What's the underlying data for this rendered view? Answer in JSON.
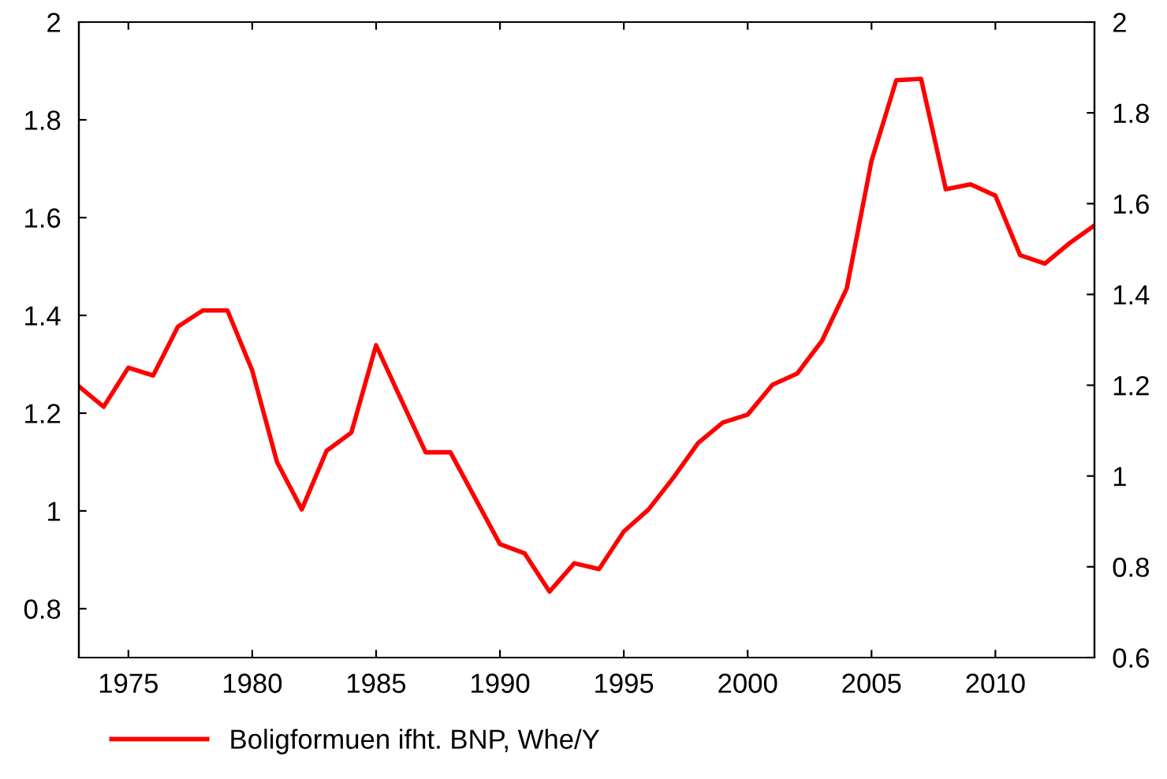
{
  "chart_data": {
    "type": "line",
    "x": [
      1973,
      1974,
      1975,
      1976,
      1977,
      1978,
      1979,
      1980,
      1981,
      1982,
      1983,
      1984,
      1985,
      1986,
      1987,
      1988,
      1989,
      1990,
      1991,
      1992,
      1993,
      1994,
      1995,
      1996,
      1997,
      1998,
      1999,
      2000,
      2001,
      2002,
      2003,
      2004,
      2005,
      2006,
      2007,
      2008,
      2009,
      2010,
      2011,
      2012,
      2013,
      2014
    ],
    "series": [
      {
        "name": "Boligformuen ifht. BNP, Whe/Y",
        "color": "#ff0000",
        "values": [
          1.255,
          1.213,
          1.293,
          1.277,
          1.377,
          1.41,
          1.41,
          1.287,
          1.1,
          1.003,
          1.123,
          1.16,
          1.339,
          1.229,
          1.12,
          1.12,
          1.026,
          0.932,
          0.913,
          0.835,
          0.893,
          0.881,
          0.958,
          1.003,
          1.068,
          1.139,
          1.181,
          1.197,
          1.258,
          1.281,
          1.348,
          1.455,
          1.716,
          1.881,
          1.884,
          1.658,
          1.668,
          1.645,
          1.523,
          1.506,
          1.548,
          1.584
        ]
      }
    ],
    "xlim": [
      1973,
      2014
    ],
    "xticks": [
      1975,
      1980,
      1985,
      1990,
      1995,
      2000,
      2005,
      2010
    ],
    "ylim": [
      0.7,
      2.0
    ],
    "yticks": [
      0.8,
      1.0,
      1.2,
      1.4,
      1.6,
      1.8,
      2.0
    ],
    "y2lim": [
      0.6,
      2.0
    ],
    "y2ticks": [
      0.6,
      0.8,
      1.0,
      1.2,
      1.4,
      1.6,
      1.8,
      2.0
    ],
    "grid": false,
    "legend": "bottom",
    "marker": "none",
    "line_style": "solid"
  }
}
